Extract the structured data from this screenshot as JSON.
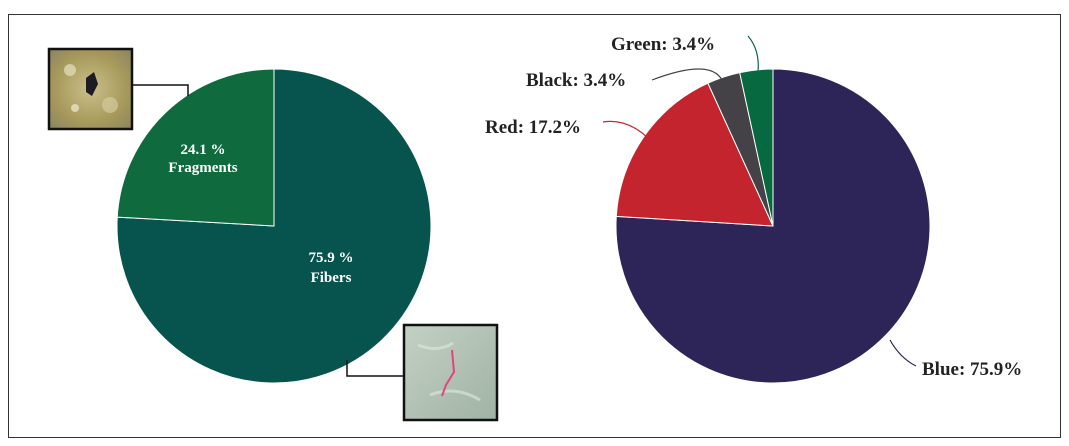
{
  "chart_data": [
    {
      "type": "pie",
      "categories": [
        "Fibers",
        "Fragments"
      ],
      "values": [
        75.9,
        24.1
      ],
      "labels": [
        {
          "value": "75.9 %",
          "name": "Fibers"
        },
        {
          "value": "24.1 %",
          "name": "Fragments"
        }
      ],
      "colors": [
        "#07544f",
        "#0f6b3e"
      ],
      "thumbnails": [
        "fiber-photo",
        "fragment-photo"
      ]
    },
    {
      "type": "pie",
      "categories": [
        "Blue",
        "Red",
        "Black",
        "Green"
      ],
      "values": [
        75.9,
        17.2,
        3.4,
        3.4
      ],
      "labels": [
        "Blue: 75.9%",
        "Red: 17.2%",
        "Black: 3.4%",
        "Green: 3.4%"
      ],
      "colors": [
        "#2d2557",
        "#c4242d",
        "#444247",
        "#07693f"
      ]
    }
  ]
}
